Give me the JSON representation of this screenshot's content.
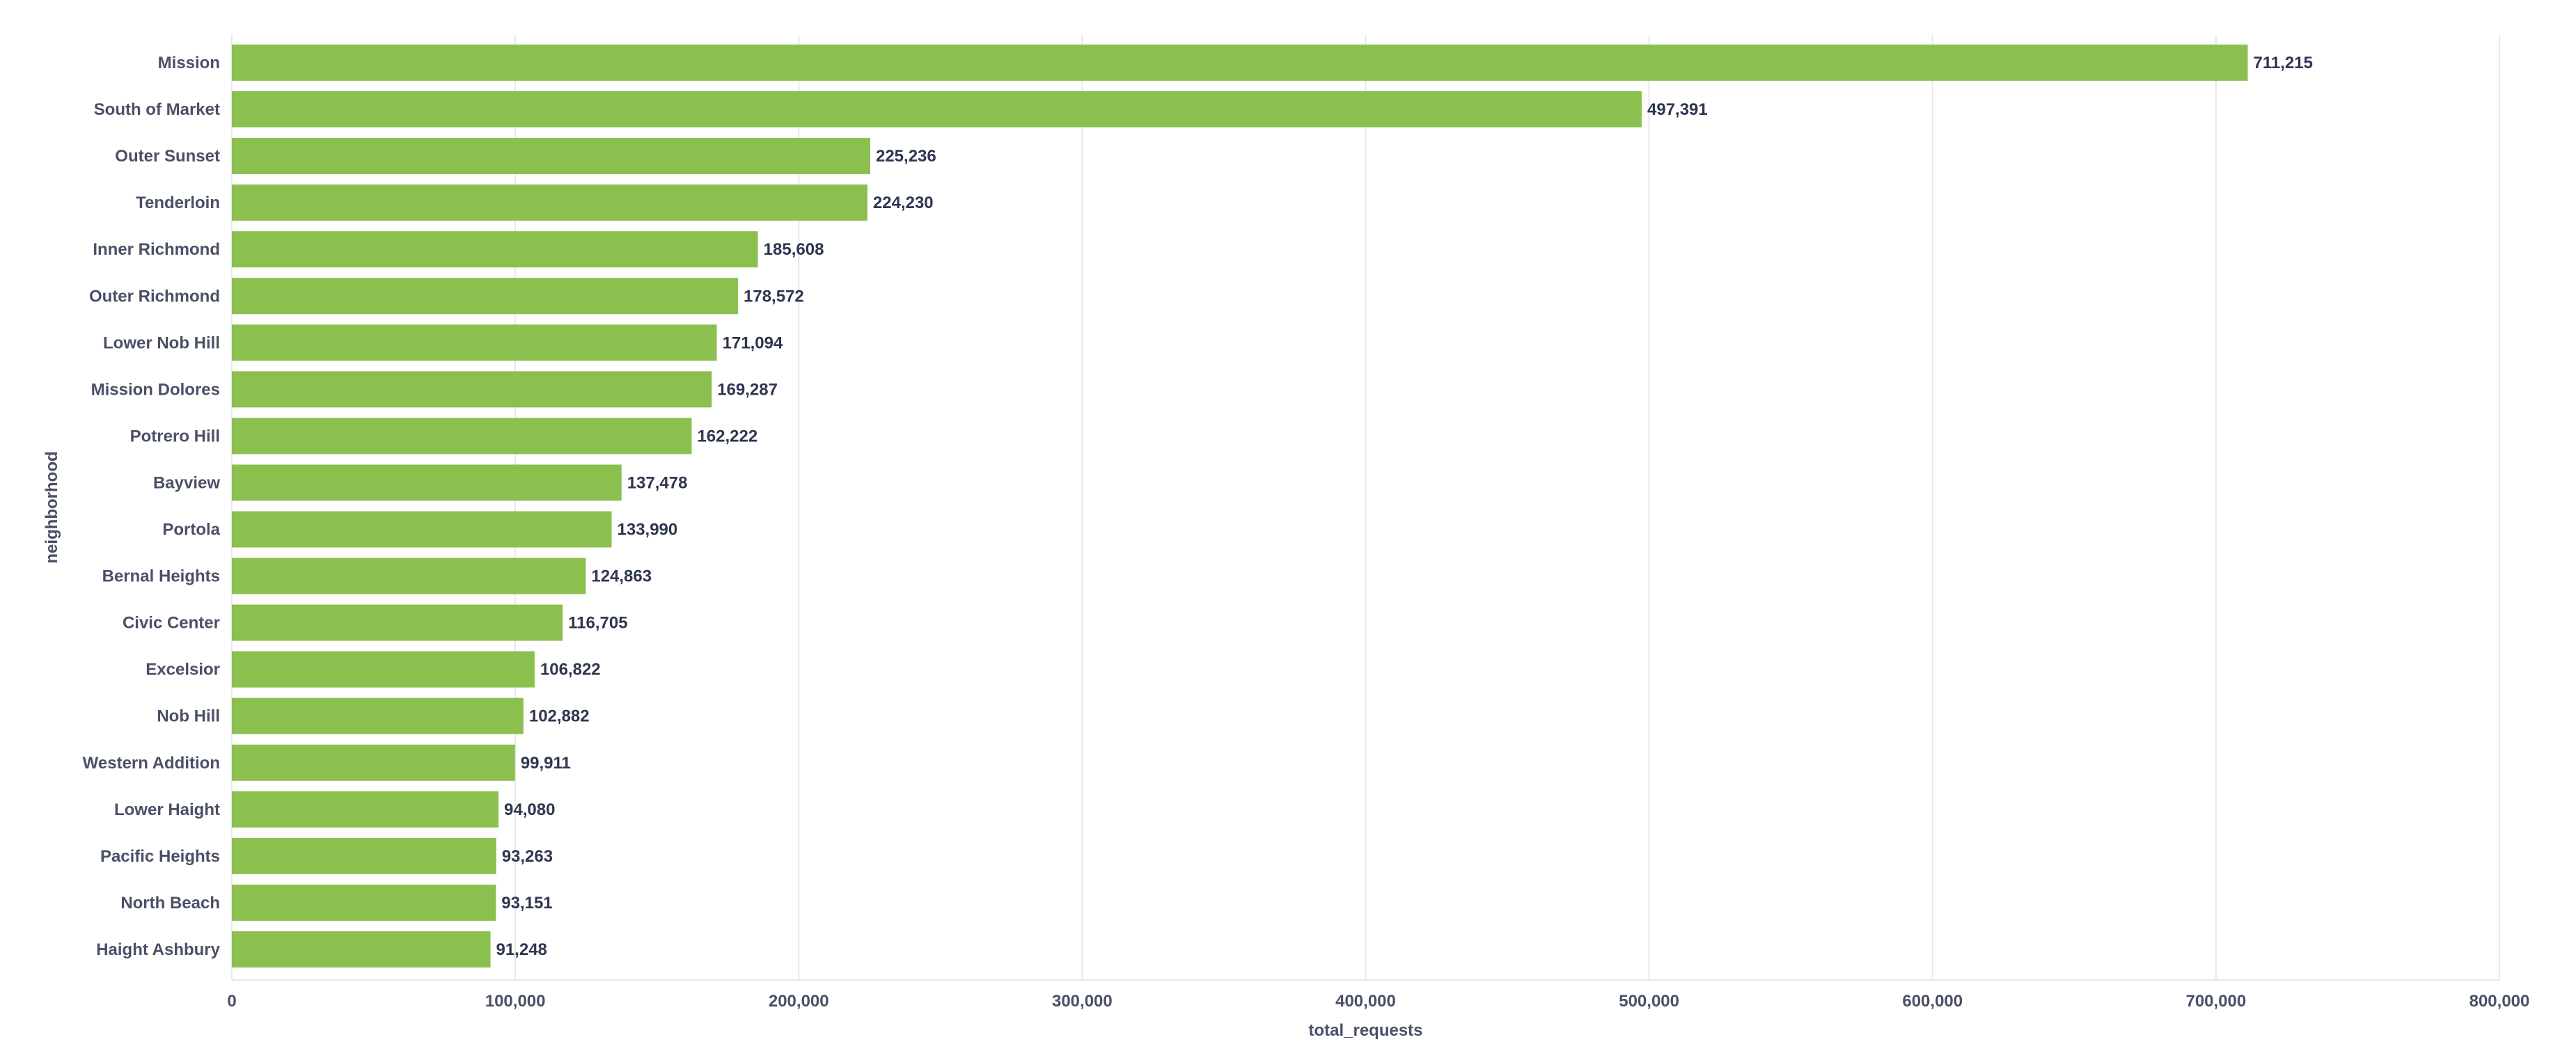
{
  "chart_data": {
    "type": "bar",
    "orientation": "horizontal",
    "xlabel": "total_requests",
    "ylabel": "neighborhood",
    "xlim": [
      0,
      800000
    ],
    "x_ticks": [
      0,
      100000,
      200000,
      300000,
      400000,
      500000,
      600000,
      700000,
      800000
    ],
    "x_tick_labels": [
      "0",
      "100,000",
      "200,000",
      "300,000",
      "400,000",
      "500,000",
      "600,000",
      "700,000",
      "800,000"
    ],
    "grid": true,
    "bar_color": "#8bc04f",
    "categories": [
      "Mission",
      "South of Market",
      "Outer Sunset",
      "Tenderloin",
      "Inner Richmond",
      "Outer Richmond",
      "Lower Nob Hill",
      "Mission Dolores",
      "Potrero Hill",
      "Bayview",
      "Portola",
      "Bernal Heights",
      "Civic Center",
      "Excelsior",
      "Nob Hill",
      "Western Addition",
      "Lower Haight",
      "Pacific Heights",
      "North Beach",
      "Haight Ashbury"
    ],
    "values": [
      711215,
      497391,
      225236,
      224230,
      185608,
      178572,
      171094,
      169287,
      162222,
      137478,
      133990,
      124863,
      116705,
      106822,
      102882,
      99911,
      94080,
      93263,
      93151,
      91248
    ],
    "value_labels": [
      "711,215",
      "497,391",
      "225,236",
      "224,230",
      "185,608",
      "178,572",
      "171,094",
      "169,287",
      "162,222",
      "137,478",
      "133,990",
      "124,863",
      "116,705",
      "106,822",
      "102,882",
      "99,911",
      "94,080",
      "93,263",
      "93,151",
      "91,248"
    ]
  }
}
